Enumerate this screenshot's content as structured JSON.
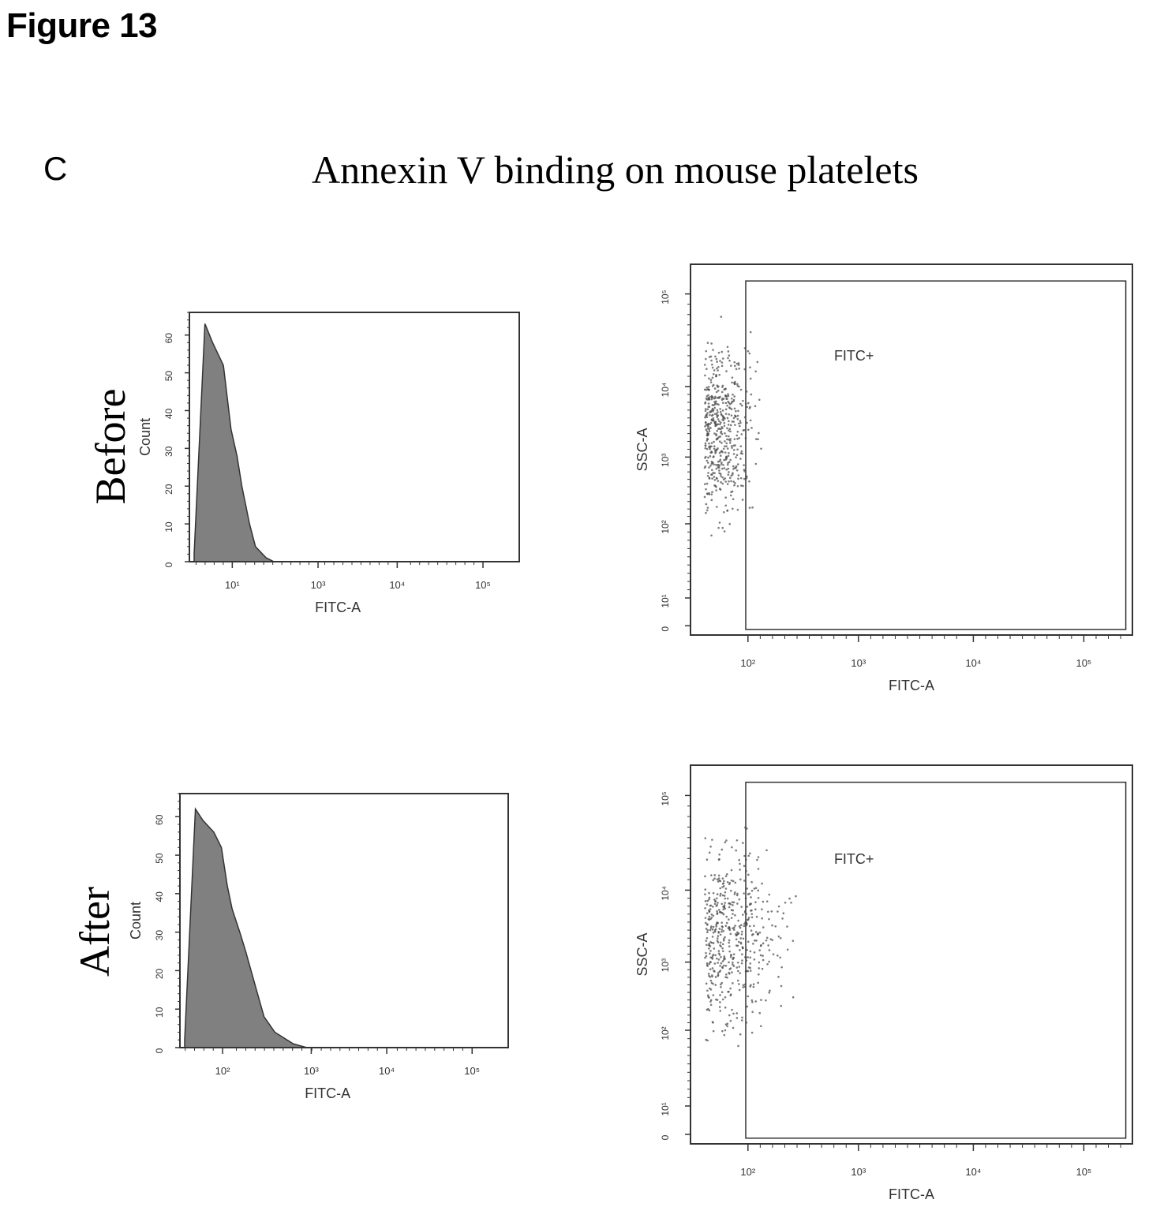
{
  "figure_title": "Figure 13",
  "panel_letter": "C",
  "main_title": "Annexin V binding on mouse platelets",
  "row_labels": [
    "Before",
    "After"
  ],
  "colors": {
    "line": "#333333",
    "fill": "#555555",
    "dots": "#444444"
  },
  "chart_data": [
    {
      "type": "area",
      "row": "Before",
      "xlabel": "FITC-A",
      "ylabel": "Count",
      "x_scale": "log",
      "x_ticks": [
        "10¹",
        "10³",
        "10⁴",
        "10⁵"
      ],
      "y_ticks": [
        "0",
        "10",
        "20",
        "30",
        "40",
        "50",
        "60"
      ],
      "ylim": [
        0,
        66
      ],
      "series": [
        {
          "x": [
            1,
            1.5,
            2,
            3,
            4,
            5,
            6,
            8,
            10,
            15,
            20
          ],
          "values": [
            2,
            63,
            58,
            52,
            35,
            28,
            20,
            10,
            4,
            1,
            0
          ]
        }
      ]
    },
    {
      "type": "scatter",
      "row": "Before",
      "xlabel": "FITC-A",
      "ylabel": "SSC-A",
      "x_scale": "log",
      "y_scale": "log",
      "x_ticks": [
        "10²",
        "10³",
        "10⁴",
        "10⁵"
      ],
      "y_ticks": [
        "0",
        "10¹",
        "10²",
        "10³",
        "10⁴",
        "10⁵"
      ],
      "gate_label": "FITC+",
      "gate_percent": 0
    },
    {
      "type": "area",
      "row": "After",
      "xlabel": "FITC-A",
      "ylabel": "Count",
      "x_scale": "log",
      "x_ticks": [
        "10²",
        "10³",
        "10⁴",
        "10⁵"
      ],
      "y_ticks": [
        "0",
        "10",
        "20",
        "30",
        "40",
        "50",
        "60"
      ],
      "ylim": [
        0,
        66
      ],
      "series": [
        {
          "x": [
            1,
            1.5,
            2,
            3,
            4,
            5,
            6,
            8,
            10,
            15,
            20,
            30,
            60,
            100
          ],
          "values": [
            2,
            62,
            59,
            56,
            52,
            42,
            36,
            30,
            25,
            15,
            8,
            4,
            1,
            0
          ]
        }
      ]
    },
    {
      "type": "scatter",
      "row": "After",
      "xlabel": "FITC-A",
      "ylabel": "SSC-A",
      "x_scale": "log",
      "y_scale": "log",
      "x_ticks": [
        "10²",
        "10³",
        "10⁴",
        "10⁵"
      ],
      "y_ticks": [
        "0",
        "10¹",
        "10²",
        "10³",
        "10⁴",
        "10⁵"
      ],
      "gate_label": "FITC+",
      "gate_percent": 0
    }
  ]
}
